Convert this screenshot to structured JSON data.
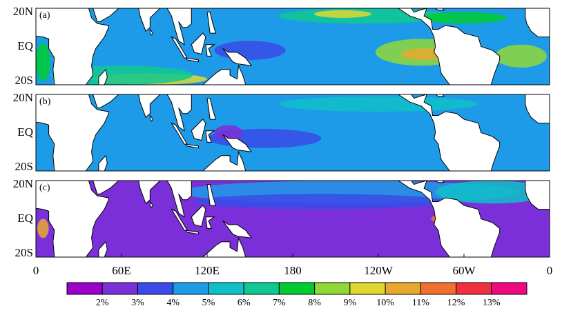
{
  "panels": [
    {
      "label": "(a)"
    },
    {
      "label": "(b)"
    },
    {
      "label": "(c)"
    }
  ],
  "lat_labels": [
    "20N",
    "EQ",
    "20S"
  ],
  "lon_labels": [
    "0",
    "60E",
    "120E",
    "180",
    "120W",
    "60W",
    "0"
  ],
  "colorbar": {
    "colors": [
      "#9a00c8",
      "#7a2fd8",
      "#3a4be8",
      "#1e9be8",
      "#10c0c8",
      "#10c890",
      "#00cc30",
      "#90d838",
      "#e0d830",
      "#e8a830",
      "#f07030",
      "#f03040",
      "#f00880"
    ],
    "labels": [
      "2%",
      "3%",
      "4%",
      "5%",
      "6%",
      "7%",
      "8%",
      "9%",
      "10%",
      "11%",
      "12%",
      "13%"
    ]
  }
}
